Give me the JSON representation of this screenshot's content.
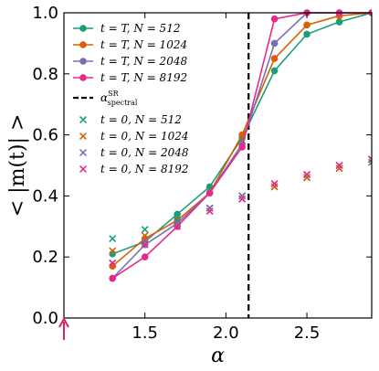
{
  "chart_data": {
    "type": "line",
    "xlabel": "α",
    "ylabel": "< |m(t)| >",
    "xlim": [
      1.0,
      2.9
    ],
    "ylim": [
      0.0,
      1.0
    ],
    "xticks": [
      1.5,
      2.0,
      2.5
    ],
    "yticks": [
      0.0,
      0.2,
      0.4,
      0.6,
      0.8,
      1.0
    ],
    "xtick_labels": [
      "1.5",
      "2.0",
      "2.5"
    ],
    "ytick_labels": [
      "0.0",
      "0.2",
      "0.4",
      "0.6",
      "0.8",
      "1.0"
    ],
    "grid": false,
    "legend_position": "upper-left",
    "vline": {
      "x": 2.14,
      "label": "α_spectral^SR",
      "color": "#000000",
      "style": "dashed"
    },
    "arrow": {
      "x": 1.0,
      "color": "#d6245a"
    },
    "series": [
      {
        "name": "t = T, N = 512",
        "color": "#1b9e77",
        "marker": "circle",
        "line": true,
        "x": [
          1.3,
          1.5,
          1.7,
          1.9,
          2.1,
          2.3,
          2.5,
          2.7,
          2.9
        ],
        "y": [
          0.21,
          0.25,
          0.34,
          0.43,
          0.59,
          0.81,
          0.93,
          0.97,
          1.0
        ]
      },
      {
        "name": "t = T, N = 1024",
        "color": "#d95f02",
        "marker": "circle",
        "line": true,
        "x": [
          1.3,
          1.5,
          1.7,
          1.9,
          2.1,
          2.3,
          2.5,
          2.7,
          2.9
        ],
        "y": [
          0.17,
          0.26,
          0.32,
          0.41,
          0.6,
          0.85,
          0.96,
          0.99,
          1.0
        ]
      },
      {
        "name": "t = T, N = 2048",
        "color": "#7570b3",
        "marker": "circle",
        "line": true,
        "x": [
          1.3,
          1.5,
          1.7,
          1.9,
          2.1,
          2.3,
          2.5,
          2.7,
          2.9
        ],
        "y": [
          0.13,
          0.24,
          0.31,
          0.41,
          0.57,
          0.9,
          1.0,
          1.0,
          1.0
        ]
      },
      {
        "name": "t = T, N = 8192",
        "color": "#e7298a",
        "marker": "circle",
        "line": true,
        "x": [
          1.3,
          1.5,
          1.7,
          1.9,
          2.1,
          2.3,
          2.5,
          2.7,
          2.9
        ],
        "y": [
          0.13,
          0.2,
          0.3,
          0.41,
          0.56,
          0.98,
          1.0,
          1.0,
          1.0
        ]
      },
      {
        "name": "t = 0, N = 512",
        "color": "#1b9e77",
        "marker": "x",
        "line": false,
        "x": [
          1.3,
          1.5,
          1.7,
          1.9,
          2.1,
          2.3,
          2.5,
          2.7,
          2.9
        ],
        "y": [
          0.26,
          0.29,
          0.32,
          0.36,
          0.4,
          0.43,
          0.46,
          0.49,
          0.51
        ]
      },
      {
        "name": "t = 0, N = 1024",
        "color": "#d95f02",
        "marker": "x",
        "line": false,
        "x": [
          1.3,
          1.5,
          1.7,
          1.9,
          2.1,
          2.3,
          2.5,
          2.7,
          2.9
        ],
        "y": [
          0.22,
          0.27,
          0.31,
          0.36,
          0.39,
          0.43,
          0.46,
          0.49,
          0.52
        ]
      },
      {
        "name": "t = 0, N = 2048",
        "color": "#7570b3",
        "marker": "x",
        "line": false,
        "x": [
          1.3,
          1.5,
          1.7,
          1.9,
          2.1,
          2.3,
          2.5,
          2.7,
          2.9
        ],
        "y": [
          0.18,
          0.25,
          0.31,
          0.36,
          0.4,
          0.44,
          0.47,
          0.5,
          0.52
        ]
      },
      {
        "name": "t = 0, N = 8192",
        "color": "#e7298a",
        "marker": "x",
        "line": false,
        "x": [
          1.3,
          1.5,
          1.7,
          1.9,
          2.1,
          2.3,
          2.5,
          2.7,
          2.9
        ],
        "y": [
          0.18,
          0.24,
          0.3,
          0.35,
          0.39,
          0.44,
          0.47,
          0.5,
          0.52
        ]
      }
    ],
    "legend": [
      {
        "label": "t = T,  N = 512"
      },
      {
        "label": "t = T,  N = 1024"
      },
      {
        "label": "t = T,  N = 2048"
      },
      {
        "label": "t = T,  N = 8192"
      },
      {
        "label": "α",
        "sup": "SR",
        "sub": "spectral"
      },
      {
        "label": "t = 0,  N = 512"
      },
      {
        "label": "t = 0,  N = 1024"
      },
      {
        "label": "t = 0,  N = 2048"
      },
      {
        "label": "t = 0,  N = 8192"
      }
    ]
  }
}
